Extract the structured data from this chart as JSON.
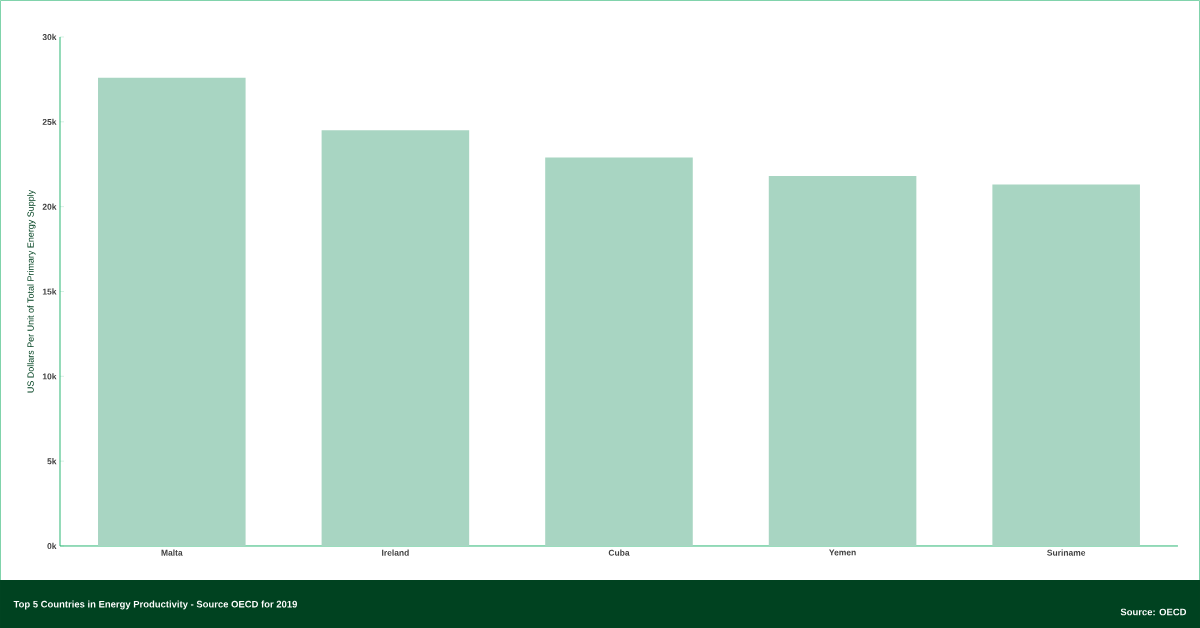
{
  "chart_data": {
    "type": "bar",
    "title": "Top 5 Countries in Energy Productivity - Source OECD for 2019",
    "ylabel": "US Dollars Per Unit of Total Primary Energy Supply",
    "categories": [
      "Malta",
      "Ireland",
      "Cuba",
      "Yemen",
      "Suriname"
    ],
    "values": [
      27600,
      24500,
      22900,
      21800,
      21300
    ],
    "color": "#a8d5c2",
    "ylim": [
      0,
      30000
    ],
    "yticks": [
      {
        "value": 0,
        "label": "0k"
      },
      {
        "value": 5000,
        "label": "5k"
      },
      {
        "value": 10000,
        "label": "10k"
      },
      {
        "value": 15000,
        "label": "15k"
      },
      {
        "value": 20000,
        "label": "20k"
      },
      {
        "value": 25000,
        "label": "25k"
      },
      {
        "value": 30000,
        "label": "30k"
      }
    ],
    "annotations": [
      "Source:  OECD"
    ]
  }
}
